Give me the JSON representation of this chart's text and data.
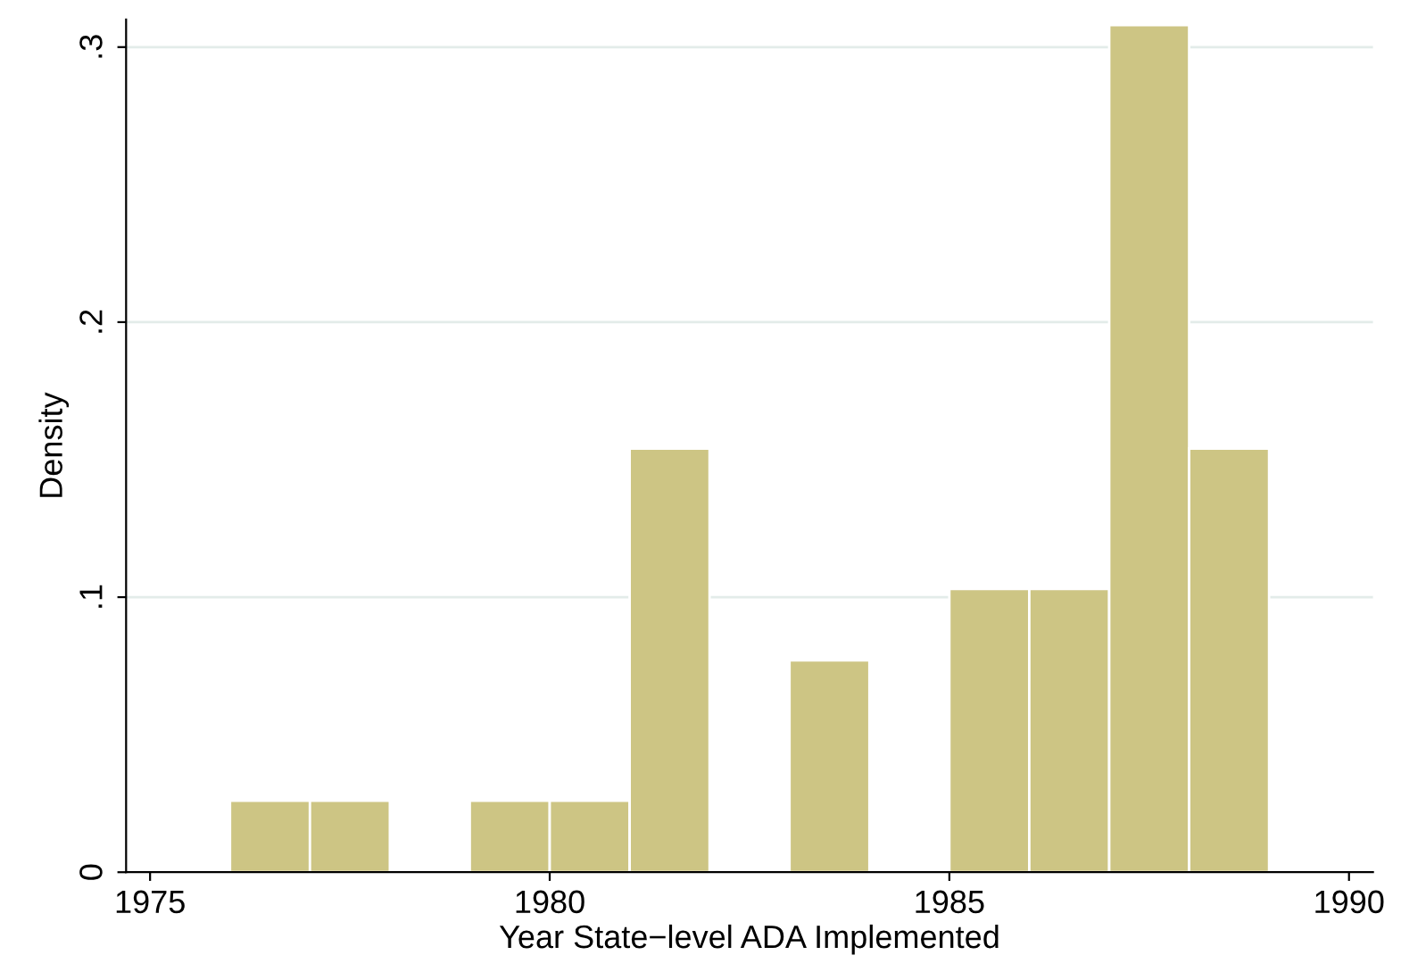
{
  "chart_data": {
    "type": "histogram",
    "xlabel": "Year State−level ADA Implemented",
    "ylabel": "Density",
    "bins": [
      1976,
      1977,
      1978,
      1979,
      1980,
      1981,
      1982,
      1983,
      1984,
      1985,
      1986,
      1987,
      1988,
      1989
    ],
    "values": [
      0.026,
      0.026,
      0,
      0.026,
      0.026,
      0.154,
      0,
      0.077,
      0,
      0.103,
      0.103,
      0.308,
      0.154
    ],
    "color": "#cdc584",
    "xlim": [
      1974.7,
      1990.3
    ],
    "xticks": [
      1975,
      1980,
      1985,
      1990
    ],
    "ylim": [
      0,
      0.31
    ],
    "yticks": [
      {
        "value": 0,
        "label": "0"
      },
      {
        "value": 0.1,
        "label": ".1"
      },
      {
        "value": 0.2,
        "label": ".2"
      },
      {
        "value": 0.3,
        "label": ".3"
      }
    ],
    "grid": "y"
  }
}
